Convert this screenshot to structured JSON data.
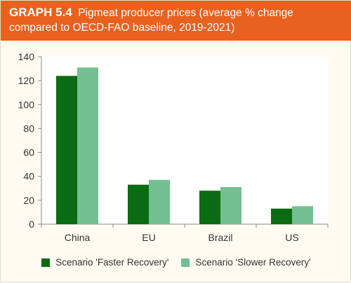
{
  "header": {
    "label": "GRAPH 5.4",
    "title": "Pigmeat producer prices (average % change compared to OECD-FAO baseline, 2019-2021)"
  },
  "colors": {
    "header_bg": "#e8611f",
    "faster": "#0b6b12",
    "slower": "#74bf92"
  },
  "chart_data": {
    "type": "bar",
    "categories": [
      "China",
      "EU",
      "Brazil",
      "US"
    ],
    "series": [
      {
        "name": "Scenario 'Faster Recovery'",
        "values": [
          124,
          33,
          28,
          13
        ]
      },
      {
        "name": "Scenario 'Slower Recovery'",
        "values": [
          131,
          37,
          31,
          15
        ]
      }
    ],
    "ylim": [
      0,
      140
    ],
    "yticks": [
      0,
      20,
      40,
      60,
      80,
      100,
      120,
      140
    ],
    "grid": false,
    "legend": "bottom"
  }
}
